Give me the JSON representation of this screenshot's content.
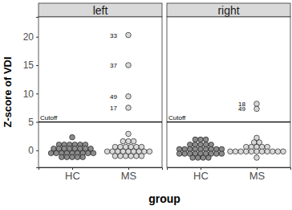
{
  "chart_data": {
    "type": "dotplot",
    "x_label": "group",
    "y_label": "Z-score of VDI",
    "categories": [
      "HC",
      "MS"
    ],
    "colors": [
      "#8c8c8c",
      "#d9d9d9"
    ],
    "ylim": [
      -3,
      23.5
    ],
    "yticks": [
      0,
      5,
      10,
      15,
      20
    ],
    "cutoff": {
      "value": 5,
      "label": "Cutoff"
    },
    "panels": [
      {
        "title": "left",
        "values": [
          [
            2.3,
            1.0,
            1.0,
            1.0,
            1.0,
            1.0,
            1.0,
            0.3,
            0.3,
            0.3,
            0.3,
            0.3,
            0.3,
            0.3,
            0.3,
            -0.5,
            -0.5,
            -0.5,
            -0.5,
            -0.5,
            -0.5,
            -0.5,
            -0.5,
            -0.5,
            -1.2,
            -1.2,
            -1.2,
            -1.2,
            -1.2
          ],
          [
            20.3,
            15.0,
            9.5,
            7.5,
            2.9,
            1.6,
            1.6,
            1.6,
            0.6,
            0.6,
            0.6,
            0.6,
            0.6,
            0.6,
            -0.2,
            -0.2,
            -0.2,
            -0.2,
            -0.2,
            -0.2,
            -0.2,
            -0.2,
            -0.2,
            -1.0,
            -1.0,
            -1.0,
            -1.0,
            -1.0,
            -1.0
          ]
        ],
        "point_labels": [
          [
            null,
            null,
            null,
            null,
            null,
            null,
            null,
            null,
            null,
            null,
            null,
            null,
            null,
            null,
            null,
            null,
            null,
            null,
            null,
            null,
            null,
            null,
            null,
            null,
            null,
            null,
            null,
            null,
            null
          ],
          [
            "33",
            "37",
            "49",
            "17",
            null,
            null,
            null,
            null,
            null,
            null,
            null,
            null,
            null,
            null,
            null,
            null,
            null,
            null,
            null,
            null,
            null,
            null,
            null,
            null,
            null,
            null,
            null,
            null,
            null
          ]
        ]
      },
      {
        "title": "right",
        "values": [
          [
            1.9,
            1.9,
            1.9,
            1.0,
            1.0,
            1.0,
            1.0,
            1.0,
            0.2,
            0.2,
            0.2,
            0.2,
            0.2,
            0.2,
            0.2,
            0.2,
            0.2,
            -0.6,
            -0.6,
            -0.6,
            -0.6,
            -0.6,
            -0.6,
            -0.6,
            -0.6,
            -0.6,
            -1.3,
            -1.3,
            -1.3,
            -1.3
          ],
          [
            8.2,
            7.3,
            2.2,
            1.4,
            1.4,
            0.6,
            0.6,
            0.6,
            0.6,
            0.6,
            -0.2,
            -0.2,
            -0.2,
            -0.2,
            -0.2,
            -0.2,
            -0.2,
            -0.2,
            -0.2,
            -0.2,
            -0.2,
            -1.3
          ]
        ],
        "point_labels": [
          [
            null,
            null,
            null,
            null,
            null,
            null,
            null,
            null,
            null,
            null,
            null,
            null,
            null,
            null,
            null,
            null,
            null,
            null,
            null,
            null,
            null,
            null,
            null,
            null,
            null,
            null,
            null,
            null,
            null,
            null
          ],
          [
            "18",
            "49",
            null,
            null,
            null,
            null,
            null,
            null,
            null,
            null,
            null,
            null,
            null,
            null,
            null,
            null,
            null,
            null,
            null,
            null,
            null,
            null
          ]
        ]
      }
    ]
  }
}
